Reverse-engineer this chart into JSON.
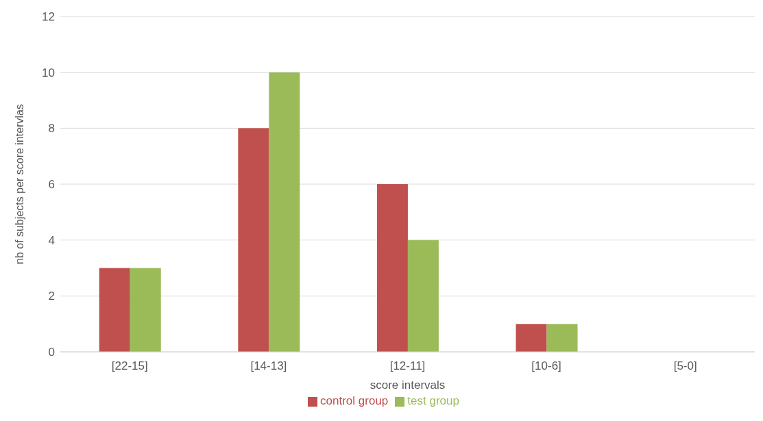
{
  "chart_data": {
    "type": "bar",
    "xlabel": "score intervals",
    "ylabel": "nb of subjects per score intervlas",
    "categories": [
      "[22-15]",
      "[14-13]",
      "[12-11]",
      "[10-6]",
      "[5-0]"
    ],
    "series": [
      {
        "name": "control group",
        "color": "#c0504d",
        "values": [
          3,
          8,
          6,
          1,
          0
        ]
      },
      {
        "name": "test group",
        "color": "#9bbb59",
        "values": [
          3,
          10,
          4,
          1,
          0
        ]
      }
    ],
    "ylim": [
      0,
      12
    ],
    "yticks": [
      0,
      2,
      4,
      6,
      8,
      10,
      12
    ],
    "grid": "y",
    "legend": "bottom"
  }
}
